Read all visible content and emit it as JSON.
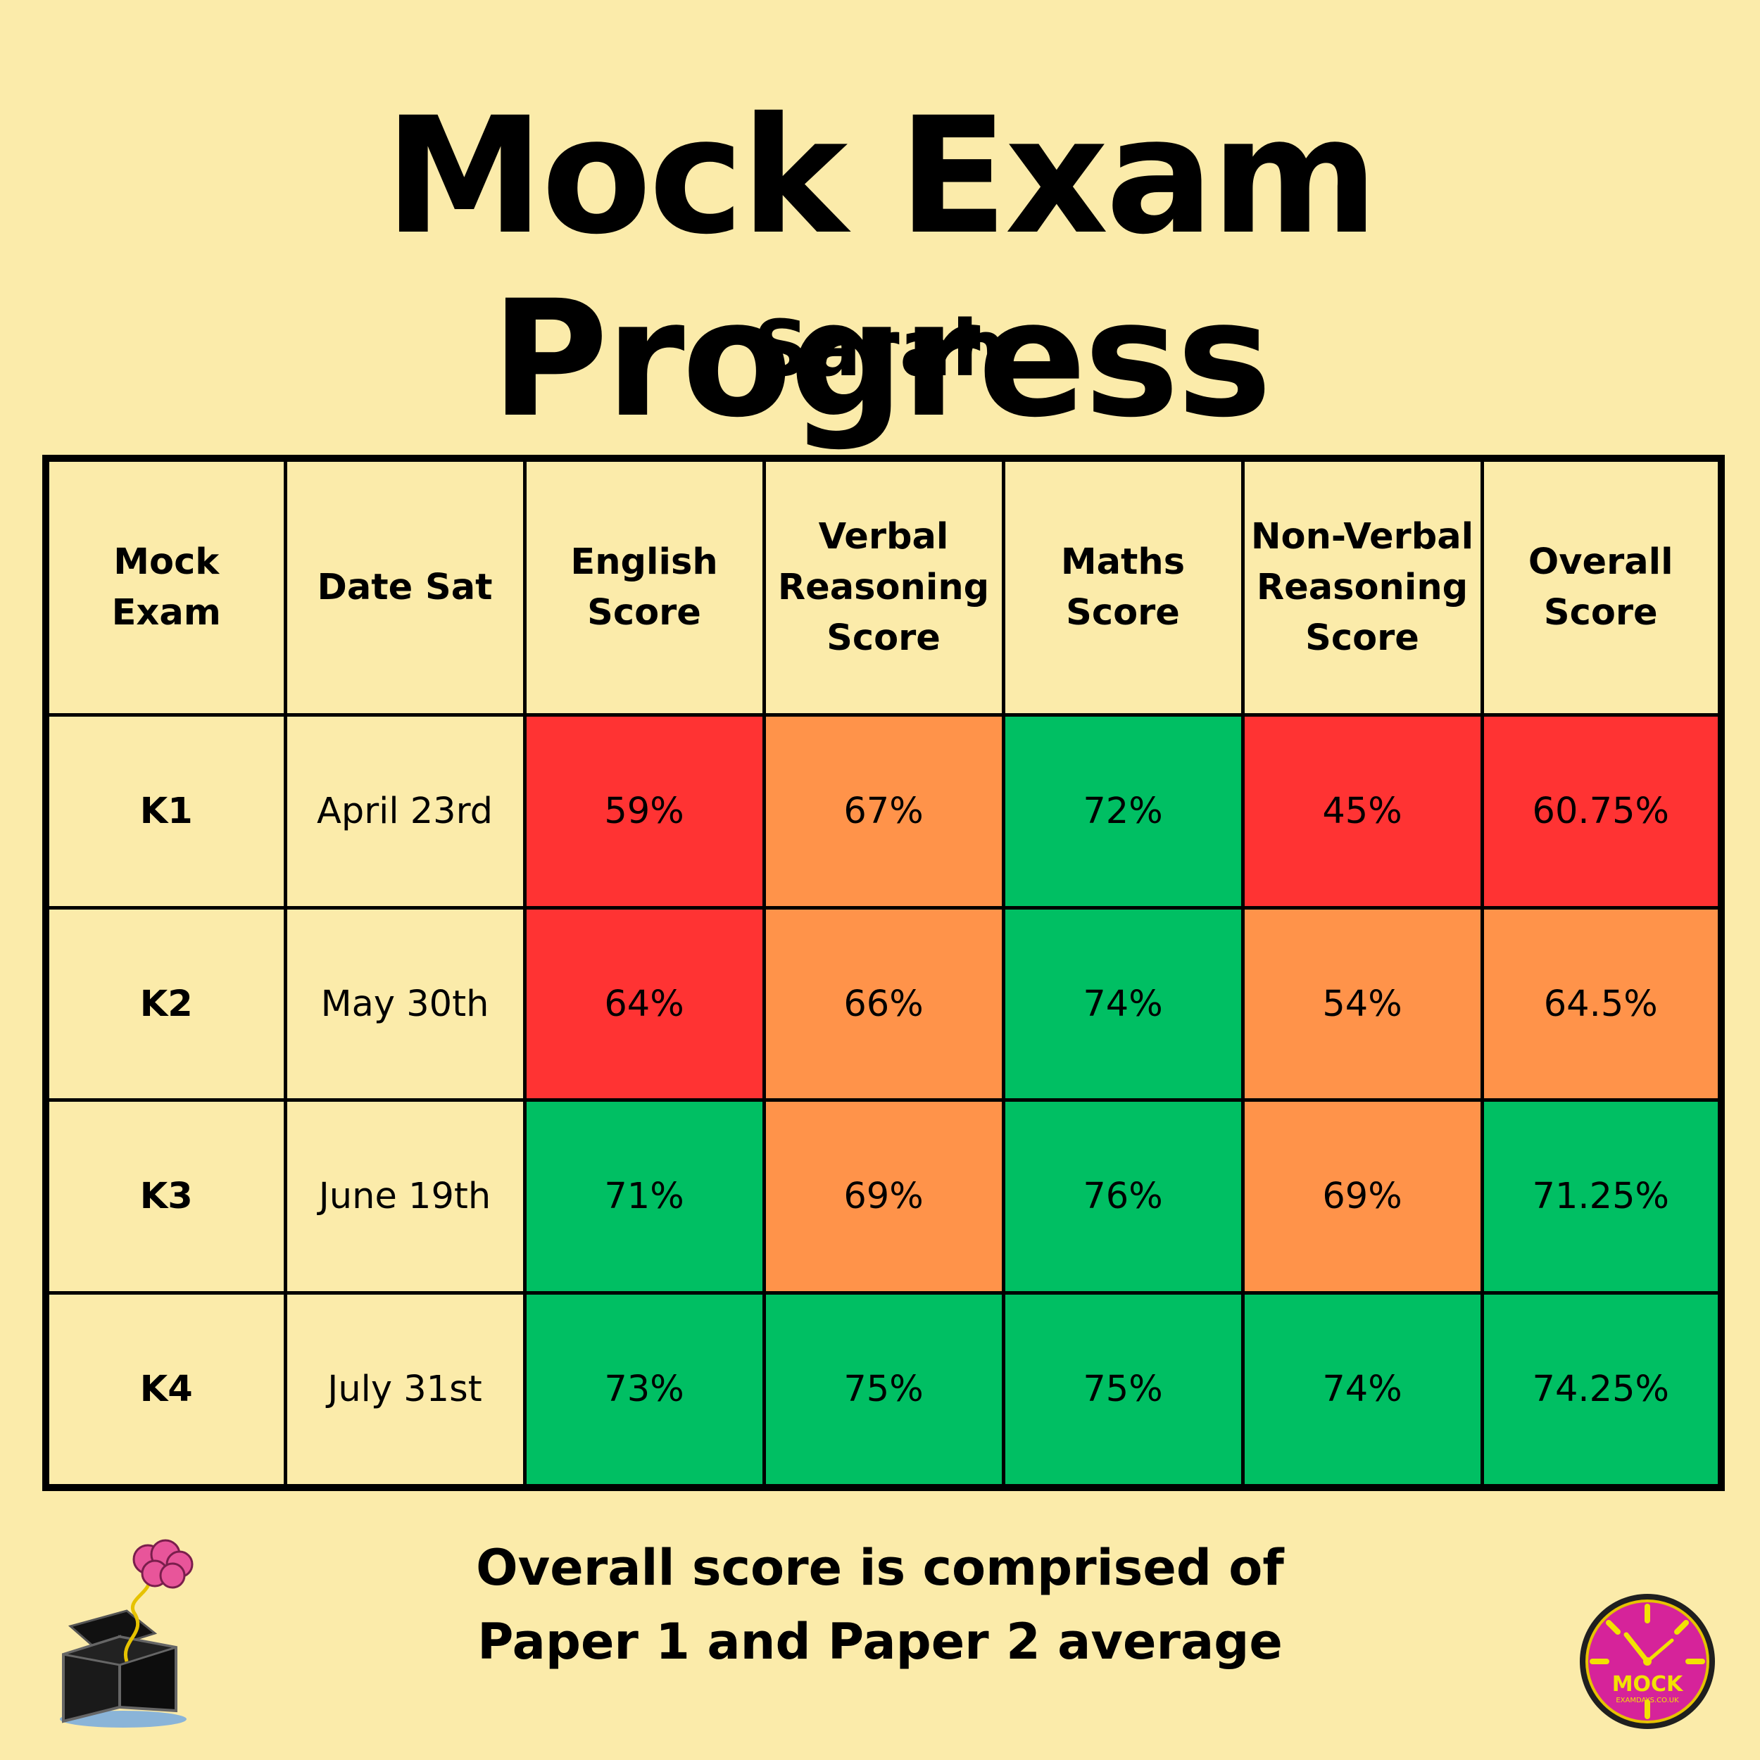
{
  "title": "Mock Exam Progress",
  "student_name": "Sarah",
  "table": {
    "headers": [
      "Mock Exam",
      "Date Sat",
      "English Score",
      "Verbal Reasoning Score",
      "Maths Score",
      "Non-Verbal Reasoning Score",
      "Overall Score"
    ],
    "rows": [
      {
        "exam": "K1",
        "date": "April 23rd",
        "english": "59%",
        "verbal": "67%",
        "maths": "72%",
        "nonverbal": "45%",
        "overall": "60.75%"
      },
      {
        "exam": "K2",
        "date": "May 30th",
        "english": "64%",
        "verbal": "66%",
        "maths": "74%",
        "nonverbal": "54%",
        "overall": "64.5%"
      },
      {
        "exam": "K3",
        "date": "June 19th",
        "english": "71%",
        "verbal": "69%",
        "maths": "76%",
        "nonverbal": "69%",
        "overall": "71.25%"
      },
      {
        "exam": "K4",
        "date": "July 31st",
        "english": "73%",
        "verbal": "75%",
        "maths": "75%",
        "nonverbal": "74%",
        "overall": "74.25%"
      }
    ],
    "colors": {
      "red": "#FF3333",
      "orange": "#FF934A",
      "green": "#00BF63",
      "background": "#FBEBAA"
    }
  },
  "footer_note": "Overall score is comprised of Paper 1 and Paper 2 average",
  "logos": {
    "left": "brain-in-box-logo",
    "right": {
      "icon": "clock-logo",
      "text": "MOCK",
      "subtext": "EXAMDAYS.CO.UK"
    }
  }
}
